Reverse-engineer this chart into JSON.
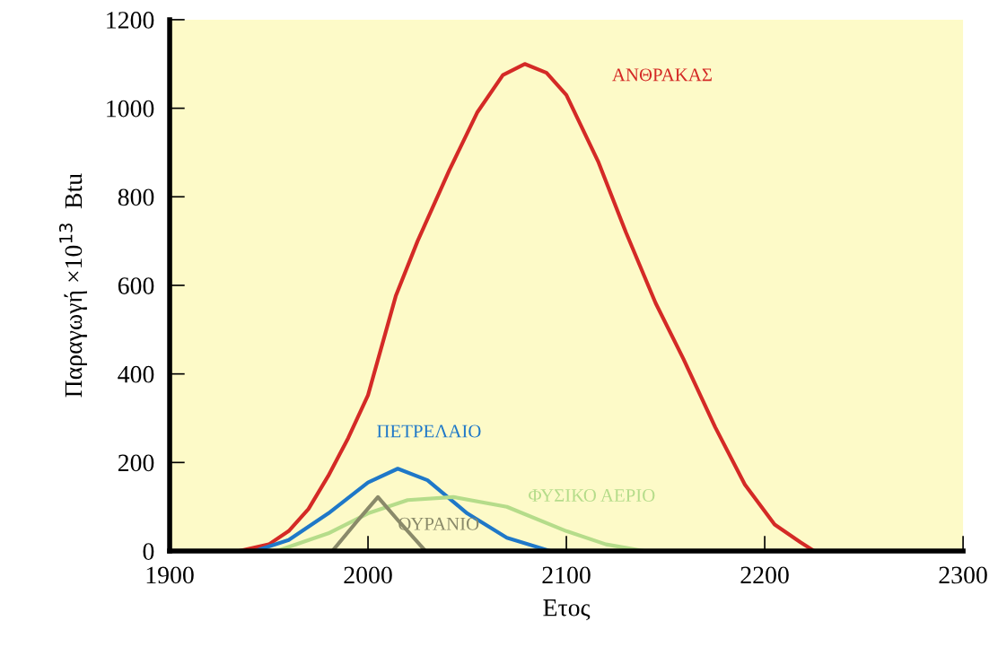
{
  "chart_data": {
    "type": "line",
    "xlabel": "Ετος",
    "ylabel": "Παραγωγή ×10$^{13}$  Btu",
    "xlim": [
      1900,
      2300
    ],
    "xticks": [
      1900,
      2000,
      2100,
      2200,
      2300
    ],
    "ylim": [
      0,
      1200
    ],
    "yticks": [
      0,
      200,
      400,
      600,
      800,
      1000,
      1200
    ],
    "grid": false,
    "legend": false,
    "marker": "none",
    "line_style": "solid",
    "series": [
      {
        "name": "ΑΝΘΡΑΚΑΣ",
        "color": "#d42a26",
        "x": [
          1935,
          1950,
          1960,
          1970,
          1980,
          1990,
          2000,
          2014,
          2025,
          2041,
          2055,
          2068,
          2079,
          2090,
          2100,
          2116,
          2130,
          2145,
          2159,
          2175,
          2190,
          2205,
          2218,
          2225
        ],
        "values": [
          0,
          15,
          45,
          95,
          170,
          255,
          352,
          576,
          700,
          860,
          990,
          1075,
          1100,
          1080,
          1030,
          880,
          720,
          560,
          434,
          280,
          150,
          60,
          20,
          0
        ]
      },
      {
        "name": "ΠΕΤΡΕΛΑΙΟ",
        "color": "#1f78c8",
        "x": [
          1943,
          1960,
          1980,
          2000,
          2015,
          2030,
          2050,
          2070,
          2092
        ],
        "values": [
          0,
          25,
          85,
          155,
          186,
          160,
          85,
          30,
          0
        ]
      },
      {
        "name": "ΦΥΣΙΚΟ ΑΕΡΙΟ",
        "color": "#b5dc8a",
        "x": [
          1954,
          1980,
          2000,
          2020,
          2043,
          2070,
          2100,
          2120,
          2139
        ],
        "values": [
          0,
          40,
          85,
          115,
          122,
          100,
          45,
          15,
          0
        ]
      },
      {
        "name": "ΟΥΡΑΝΙΟ",
        "color": "#8a8a6a",
        "x": [
          1982,
          1995,
          2005,
          2015,
          2029
        ],
        "values": [
          0,
          70,
          122,
          70,
          0
        ]
      }
    ]
  }
}
